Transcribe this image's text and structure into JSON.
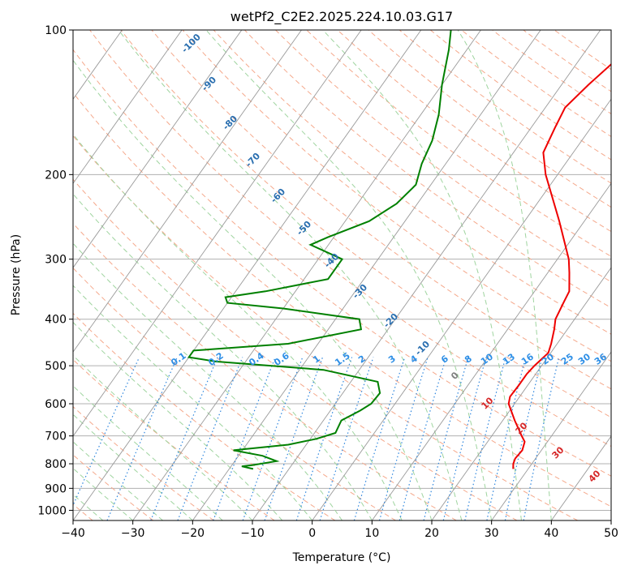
{
  "chart_data": {
    "type": "line",
    "title": "wetPf2_C2E2.2025.224.10.03.G17",
    "xlabel": "Temperature (°C)",
    "ylabel": "Pressure (hPa)",
    "xlim": [
      -40,
      50
    ],
    "ylim": [
      1050,
      100
    ],
    "y_scale": "log",
    "x_ticks": [
      -40,
      -30,
      -20,
      -10,
      0,
      10,
      20,
      30,
      40,
      50
    ],
    "x_tick_labels": [
      "−40",
      "−30",
      "−20",
      "−10",
      "0",
      "10",
      "20",
      "30",
      "40",
      "50"
    ],
    "y_ticks": [
      100,
      200,
      300,
      400,
      500,
      600,
      700,
      800,
      900,
      1000
    ],
    "y_tick_labels": [
      "100",
      "200",
      "300",
      "400",
      "500",
      "600",
      "700",
      "800",
      "900",
      "1000"
    ],
    "grid": true,
    "series": [
      {
        "color": "#ee0000",
        "points": [
          {
            "p": 820,
            "t": 27.5
          },
          {
            "p": 800,
            "t": 26.9
          },
          {
            "p": 780,
            "t": 26.6
          },
          {
            "p": 750,
            "t": 26.8
          },
          {
            "p": 720,
            "t": 26.2
          },
          {
            "p": 700,
            "t": 25.0
          },
          {
            "p": 650,
            "t": 22.0
          },
          {
            "p": 600,
            "t": 19.0
          },
          {
            "p": 580,
            "t": 18.4
          },
          {
            "p": 550,
            "t": 18.5
          },
          {
            "p": 520,
            "t": 18.5
          },
          {
            "p": 500,
            "t": 18.8
          },
          {
            "p": 470,
            "t": 19.6
          },
          {
            "p": 450,
            "t": 19.0
          },
          {
            "p": 420,
            "t": 17.8
          },
          {
            "p": 400,
            "t": 16.8
          },
          {
            "p": 370,
            "t": 16.2
          },
          {
            "p": 350,
            "t": 15.8
          },
          {
            "p": 320,
            "t": 13.6
          },
          {
            "p": 300,
            "t": 11.9
          },
          {
            "p": 250,
            "t": 5.8
          },
          {
            "p": 200,
            "t": -2.0
          },
          {
            "p": 180,
            "t": -5.0
          },
          {
            "p": 160,
            "t": -6.0
          },
          {
            "p": 145,
            "t": -6.7
          },
          {
            "p": 130,
            "t": -5.5
          },
          {
            "p": 115,
            "t": -3.8
          },
          {
            "p": 100,
            "t": -3.2
          }
        ]
      },
      {
        "color": "#008000",
        "points": [
          {
            "p": 820,
            "t": -16.0
          },
          {
            "p": 810,
            "t": -18.2
          },
          {
            "p": 805,
            "t": -16.5
          },
          {
            "p": 790,
            "t": -13.0
          },
          {
            "p": 770,
            "t": -16.0
          },
          {
            "p": 750,
            "t": -21.5
          },
          {
            "p": 730,
            "t": -13.0
          },
          {
            "p": 710,
            "t": -9.0
          },
          {
            "p": 690,
            "t": -6.5
          },
          {
            "p": 650,
            "t": -7.0
          },
          {
            "p": 620,
            "t": -5.0
          },
          {
            "p": 600,
            "t": -4.0
          },
          {
            "p": 570,
            "t": -3.8
          },
          {
            "p": 540,
            "t": -5.5
          },
          {
            "p": 510,
            "t": -16.0
          },
          {
            "p": 490,
            "t": -35.0
          },
          {
            "p": 480,
            "t": -40.0
          },
          {
            "p": 465,
            "t": -40.0
          },
          {
            "p": 450,
            "t": -25.0
          },
          {
            "p": 420,
            "t": -14.5
          },
          {
            "p": 400,
            "t": -16.0
          },
          {
            "p": 380,
            "t": -30.0
          },
          {
            "p": 370,
            "t": -40.0
          },
          {
            "p": 360,
            "t": -41.0
          },
          {
            "p": 350,
            "t": -35.0
          },
          {
            "p": 330,
            "t": -26.0
          },
          {
            "p": 300,
            "t": -26.0
          },
          {
            "p": 280,
            "t": -33.0
          },
          {
            "p": 270,
            "t": -31.0
          },
          {
            "p": 250,
            "t": -26.0
          },
          {
            "p": 230,
            "t": -23.5
          },
          {
            "p": 210,
            "t": -22.5
          },
          {
            "p": 190,
            "t": -24.0
          },
          {
            "p": 170,
            "t": -25.0
          },
          {
            "p": 150,
            "t": -27.0
          },
          {
            "p": 130,
            "t": -30.0
          },
          {
            "p": 110,
            "t": -33.0
          },
          {
            "p": 100,
            "t": -35.0
          }
        ]
      }
    ],
    "mixing_ratio_labels": [
      "0.1",
      "0.2",
      "0.4",
      "0.6",
      "1",
      "1.5",
      "2",
      "3",
      "4",
      "6",
      "8",
      "10",
      "13",
      "16",
      "20",
      "25",
      "30",
      "36"
    ],
    "dry_adiabat_labels": [
      "-100",
      "-90",
      "-80",
      "-70",
      "-60",
      "-50",
      "-40",
      "-30",
      "-20",
      "-10",
      "0",
      "10",
      "20",
      "30",
      "40"
    ]
  }
}
